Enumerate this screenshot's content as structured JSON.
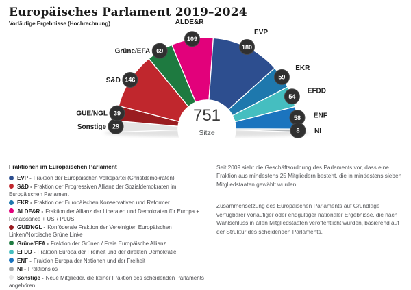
{
  "header": {
    "title": "Europäisches Parlament 2019–2024",
    "subtitle": "Vorläufige Ergebnisse (Hochrechnung)"
  },
  "chart_data": {
    "type": "pie",
    "variant": "hemicycle (half-donut parliament seating chart)",
    "title": "Europäisches Parlament 2019–2024",
    "center_value": "751",
    "center_label": "Sitze",
    "total_seats": 751,
    "categories": [
      "Sonstige",
      "GUE/NGL",
      "S&D",
      "Grüne/EFA",
      "ALDE&R",
      "EVP",
      "EKR",
      "EFDD",
      "ENF",
      "NI"
    ],
    "values": [
      29,
      39,
      146,
      69,
      109,
      180,
      59,
      54,
      58,
      8
    ],
    "colors": [
      "#e4e4e4",
      "#9a1c20",
      "#c0272d",
      "#1e7a40",
      "#e2017b",
      "#2d4e8f",
      "#1e78ad",
      "#45bec0",
      "#1b74be",
      "#b3b7ba"
    ],
    "badge_color": "#303030",
    "legend_position": "bottom-left"
  },
  "legend": {
    "heading": "Fraktionen im Europäischen Parlament",
    "items": [
      {
        "color": "#2d4e8f",
        "bold": "EVP -",
        "rest": "Fraktion der Europäischen Volkspartei (Christdemokraten)"
      },
      {
        "color": "#c0272d",
        "bold": "S&D -",
        "rest": "Fraktion der Progressiven Allianz der Sozialdemokraten im Europäischen Parlament"
      },
      {
        "color": "#1e78ad",
        "bold": "EKR -",
        "rest": "Fraktion der Europäischen Konservativen und Reformer"
      },
      {
        "color": "#e2017b",
        "bold": "ALDE&R -",
        "rest": "Fraktion der Allianz der Liberalen und Demokraten für Europa + Renaissance + USR PLUS"
      },
      {
        "color": "#9a1c20",
        "bold": "GUE/NGL -",
        "rest": "Konföderale Fraktion der Vereinigten Europäischen Linken/Nordische Grüne Linke"
      },
      {
        "color": "#1e7a40",
        "bold": "Grüne/EFA -",
        "rest": "Fraktion der Grünen / Freie Europäische Allianz"
      },
      {
        "color": "#45bec0",
        "bold": "EFDD -",
        "rest": "Fraktion Europa der Freiheit und der direkten Demokratie"
      },
      {
        "color": "#1b74be",
        "bold": "ENF -",
        "rest": "Fraktion Europa der Nationen und der Freiheit"
      },
      {
        "color": "#a2a6a9",
        "bold": "NI -",
        "rest": "Fraktionslos"
      },
      {
        "color": "#e8e8e8",
        "bold": "Sonstige -",
        "rest": "Neue Mitglieder, die keiner Fraktion des scheidenden Parlaments angehören"
      }
    ]
  },
  "notes": {
    "p1": "Seit 2009 sieht die Geschäftsordnung des Parlaments vor, dass eine Fraktion aus mindestens 25 Mitgliedern besteht, die in mindestens sieben Mitgliedstaaten gewählt wurden.",
    "p2": "Zusammensetzung des Europäischen Parlaments auf Grundlage verfügbarer vorläufiger oder endgültiger nationaler Ergebnisse, die nach Wahlschluss in allen Mitgliedstaaten veröffentlicht wurden, basierend auf der Struktur des scheidenden Parlaments."
  }
}
